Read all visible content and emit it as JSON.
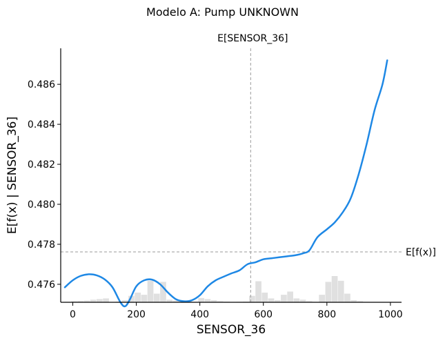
{
  "chart_data": {
    "type": "line",
    "title": "Modelo A: Pump UNKNOWN",
    "xlabel": "SENSOR_36",
    "ylabel": "E[f(x) | SENSOR_36]",
    "xlim": [
      -38,
      1035
    ],
    "ylim": [
      0.4751,
      0.4878
    ],
    "x_ticks": [
      "0",
      "200",
      "400",
      "600",
      "800",
      "1000"
    ],
    "y_ticks": [
      "0.476",
      "0.478",
      "0.480",
      "0.482",
      "0.484",
      "0.486"
    ],
    "x_tick_values": [
      0,
      200,
      400,
      600,
      800,
      1000
    ],
    "y_tick_values": [
      0.476,
      0.478,
      0.48,
      0.482,
      0.484,
      0.486
    ],
    "line_color": "#1E88E5",
    "series": [
      {
        "x": [
          -25,
          0,
          25,
          50,
          75,
          100,
          125,
          150,
          165,
          180,
          200,
          225,
          250,
          275,
          300,
          325,
          350,
          375,
          400,
          425,
          450,
          475,
          500,
          525,
          550,
          575,
          600,
          625,
          650,
          675,
          700,
          725,
          745,
          770,
          800,
          825,
          850,
          875,
          900,
          925,
          950,
          975,
          990
        ],
        "y": [
          0.47585,
          0.4762,
          0.47642,
          0.4765,
          0.47645,
          0.47625,
          0.47585,
          0.4751,
          0.4749,
          0.47525,
          0.4759,
          0.4762,
          0.47623,
          0.476,
          0.47558,
          0.47525,
          0.47515,
          0.4752,
          0.47545,
          0.4759,
          0.4762,
          0.47638,
          0.47655,
          0.4767,
          0.477,
          0.4771,
          0.47725,
          0.4773,
          0.47735,
          0.4774,
          0.47745,
          0.47755,
          0.4777,
          0.47835,
          0.47875,
          0.4791,
          0.4796,
          0.4803,
          0.4815,
          0.483,
          0.4847,
          0.486,
          0.4872
        ]
      }
    ],
    "reference_lines": {
      "vertical": {
        "label": "E[SENSOR_36]",
        "x": 560
      },
      "horizontal": {
        "label": "E[f(x)]",
        "y": 0.47762
      }
    },
    "histogram": {
      "bin_edges": [
        -25,
        -5,
        15,
        35,
        55,
        75,
        95,
        115,
        135,
        155,
        175,
        195,
        215,
        235,
        255,
        275,
        295,
        315,
        335,
        355,
        375,
        395,
        415,
        435,
        455,
        475,
        495,
        515,
        535,
        555,
        575,
        595,
        615,
        635,
        655,
        675,
        695,
        715,
        735,
        755,
        775,
        795,
        815,
        835,
        855,
        875,
        895,
        915,
        935,
        955,
        975,
        995
      ],
      "counts": [
        0.02,
        0.05,
        0.06,
        0.08,
        0.12,
        0.15,
        0.18,
        0.0,
        0.03,
        0.1,
        0.3,
        0.45,
        0.35,
        1.0,
        0.4,
        0.95,
        0.12,
        0.08,
        0.05,
        0.05,
        0.03,
        0.2,
        0.15,
        0.1,
        0.05,
        0.03,
        0.0,
        0.02,
        0.03,
        0.3,
        0.98,
        0.45,
        0.18,
        0.1,
        0.35,
        0.5,
        0.18,
        0.12,
        0.05,
        0.02,
        0.35,
        0.95,
        1.22,
        1.0,
        0.4,
        0.1,
        0.05,
        0.02,
        0.0,
        0.0,
        0.0
      ]
    }
  }
}
